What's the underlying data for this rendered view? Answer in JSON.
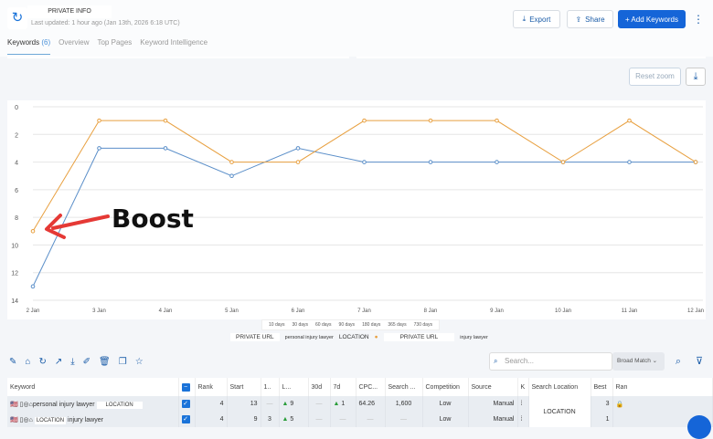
{
  "header": {
    "title": "PRIVATE INFO",
    "updated": "Last updated: 1 hour ago (Jan 13th, 2026 6:18 UTC)",
    "export": "Export",
    "share": "Share",
    "add": "+ Add Keywords",
    "more": "⋮"
  },
  "tabs": [
    {
      "label": "Keywords",
      "count": "(6)"
    },
    {
      "label": "Overview"
    },
    {
      "label": "Top Pages"
    },
    {
      "label": "Keyword Intelligence"
    }
  ],
  "chart_controls": {
    "reset": "Reset zoom",
    "ranges": [
      "10 days",
      "30 days",
      "60 days",
      "90 days",
      "180 days",
      "365 days",
      "730 days"
    ]
  },
  "legend": {
    "url1": "PRIVATE URL",
    "kw1": "personal injury lawyer",
    "loc": "LOCATION",
    "url2": "PRIVATE URL",
    "kw2": "injury lawyer"
  },
  "annotation": "Boost",
  "chart_data": {
    "type": "line",
    "categories": [
      "2 Jan",
      "3 Jan",
      "4 Jan",
      "5 Jan",
      "6 Jan",
      "7 Jan",
      "8 Jan",
      "9 Jan",
      "10 Jan",
      "11 Jan",
      "12 Jan"
    ],
    "ylim": [
      14,
      0
    ],
    "yticks": [
      0,
      2,
      4,
      6,
      8,
      10,
      12,
      14
    ],
    "y_reversed": true,
    "grid": true,
    "series": [
      {
        "color": "#5b8fc9",
        "values": [
          13,
          3,
          3,
          5,
          3,
          4,
          4,
          4,
          4,
          4,
          4
        ]
      },
      {
        "color": "#e8a040",
        "values": [
          9,
          1,
          1,
          4,
          4,
          1,
          1,
          1,
          4,
          1,
          4
        ]
      }
    ]
  },
  "toolbar": {
    "search_placeholder": "Search...",
    "match": "Broad Match"
  },
  "table": {
    "headers": [
      "Keyword",
      "",
      "Rank",
      "Start",
      "1..",
      "L...",
      "30d",
      "7d",
      "CPC...",
      "Search ...",
      "Competition",
      "Source",
      "K",
      "Search Location",
      "Best",
      "Ran"
    ],
    "rows": [
      {
        "keyword": "personal injury lawyer",
        "loc": "LOCATION",
        "rank": "4",
        "start": "13",
        "d1": "—",
        "life": "9",
        "d30": "—",
        "d7": "1",
        "cpc": "64.26",
        "search": "1,600",
        "comp": "Low",
        "source": "Manual",
        "best": "3"
      },
      {
        "keyword": "injury lawyer",
        "loc": "LOCATION",
        "rank": "4",
        "start": "9",
        "d1": "3",
        "life": "5",
        "d30": "—",
        "d7": "—",
        "cpc": "—",
        "search": "—",
        "comp": "Low",
        "source": "Manual",
        "best": "1"
      }
    ],
    "search_location": "LOCATION"
  },
  "colors": {
    "accent": "#1565d8",
    "annotation": "#e53935"
  }
}
